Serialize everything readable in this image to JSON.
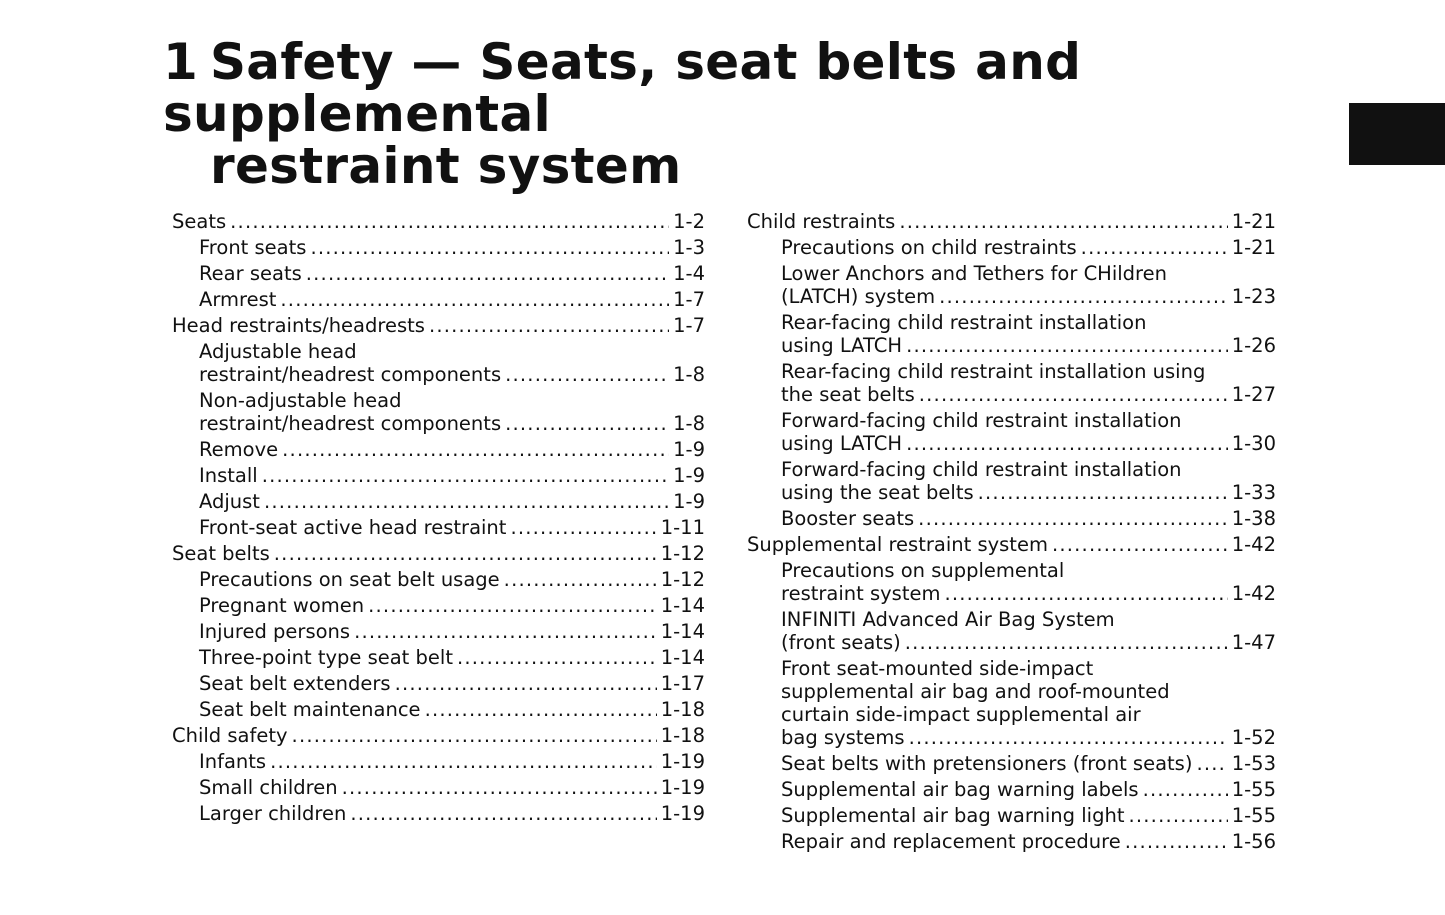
{
  "chapter": {
    "number": "1",
    "title_line1": "Safety — Seats, seat belts and supplemental",
    "title_line2": "restraint system"
  },
  "left_column": [
    {
      "level": 0,
      "lines": [
        "Seats"
      ],
      "page": "1-2"
    },
    {
      "level": 1,
      "lines": [
        "Front seats"
      ],
      "page": "1-3"
    },
    {
      "level": 1,
      "lines": [
        "Rear seats"
      ],
      "page": "1-4"
    },
    {
      "level": 1,
      "lines": [
        "Armrest"
      ],
      "page": "1-7"
    },
    {
      "level": 0,
      "lines": [
        "Head restraints/headrests"
      ],
      "page": "1-7"
    },
    {
      "level": 1,
      "lines": [
        "Adjustable head",
        "restraint/headrest components"
      ],
      "page": "1-8"
    },
    {
      "level": 1,
      "lines": [
        "Non-adjustable head",
        "restraint/headrest components"
      ],
      "page": "1-8"
    },
    {
      "level": 1,
      "lines": [
        "Remove"
      ],
      "page": "1-9"
    },
    {
      "level": 1,
      "lines": [
        "Install"
      ],
      "page": "1-9"
    },
    {
      "level": 1,
      "lines": [
        "Adjust"
      ],
      "page": "1-9"
    },
    {
      "level": 1,
      "lines": [
        "Front-seat active head restraint"
      ],
      "page": "1-11"
    },
    {
      "level": 0,
      "lines": [
        "Seat belts"
      ],
      "page": "1-12"
    },
    {
      "level": 1,
      "lines": [
        "Precautions on seat belt usage"
      ],
      "page": "1-12"
    },
    {
      "level": 1,
      "lines": [
        "Pregnant women"
      ],
      "page": "1-14"
    },
    {
      "level": 1,
      "lines": [
        "Injured persons"
      ],
      "page": "1-14"
    },
    {
      "level": 1,
      "lines": [
        "Three-point type seat belt"
      ],
      "page": "1-14"
    },
    {
      "level": 1,
      "lines": [
        "Seat belt extenders"
      ],
      "page": "1-17"
    },
    {
      "level": 1,
      "lines": [
        "Seat belt maintenance"
      ],
      "page": "1-18"
    },
    {
      "level": 0,
      "lines": [
        "Child safety"
      ],
      "page": "1-18"
    },
    {
      "level": 1,
      "lines": [
        "Infants"
      ],
      "page": "1-19"
    },
    {
      "level": 1,
      "lines": [
        "Small children"
      ],
      "page": "1-19"
    },
    {
      "level": 1,
      "lines": [
        "Larger children"
      ],
      "page": "1-19"
    }
  ],
  "right_column": [
    {
      "level": 0,
      "lines": [
        "Child restraints"
      ],
      "page": "1-21"
    },
    {
      "level": 1,
      "lines": [
        "Precautions on child restraints"
      ],
      "page": "1-21"
    },
    {
      "level": 1,
      "lines": [
        "Lower Anchors and Tethers for CHildren",
        "(LATCH) system"
      ],
      "page": "1-23"
    },
    {
      "level": 1,
      "lines": [
        "Rear-facing child restraint installation",
        "using LATCH"
      ],
      "page": "1-26"
    },
    {
      "level": 1,
      "lines": [
        "Rear-facing child restraint installation using",
        "the seat belts"
      ],
      "page": "1-27"
    },
    {
      "level": 1,
      "lines": [
        "Forward-facing child restraint installation",
        "using LATCH"
      ],
      "page": "1-30"
    },
    {
      "level": 1,
      "lines": [
        "Forward-facing child restraint installation",
        "using the seat belts"
      ],
      "page": "1-33"
    },
    {
      "level": 1,
      "lines": [
        "Booster seats"
      ],
      "page": "1-38"
    },
    {
      "level": 0,
      "lines": [
        "Supplemental restraint system"
      ],
      "page": "1-42"
    },
    {
      "level": 1,
      "lines": [
        "Precautions on supplemental",
        "restraint system"
      ],
      "page": "1-42"
    },
    {
      "level": 1,
      "lines": [
        "INFINITI Advanced Air Bag System",
        "(front seats)"
      ],
      "page": "1-47"
    },
    {
      "level": 1,
      "lines": [
        "Front seat-mounted side-impact",
        "supplemental air bag and roof-mounted",
        "curtain side-impact supplemental air",
        "bag systems"
      ],
      "page": "1-52"
    },
    {
      "level": 1,
      "lines": [
        "Seat belts with pretensioners (front seats)"
      ],
      "page": "1-53"
    },
    {
      "level": 1,
      "lines": [
        "Supplemental air bag warning labels"
      ],
      "page": "1-55"
    },
    {
      "level": 1,
      "lines": [
        "Supplemental air bag warning light"
      ],
      "page": "1-55"
    },
    {
      "level": 1,
      "lines": [
        "Repair and replacement procedure"
      ],
      "page": "1-56"
    }
  ]
}
